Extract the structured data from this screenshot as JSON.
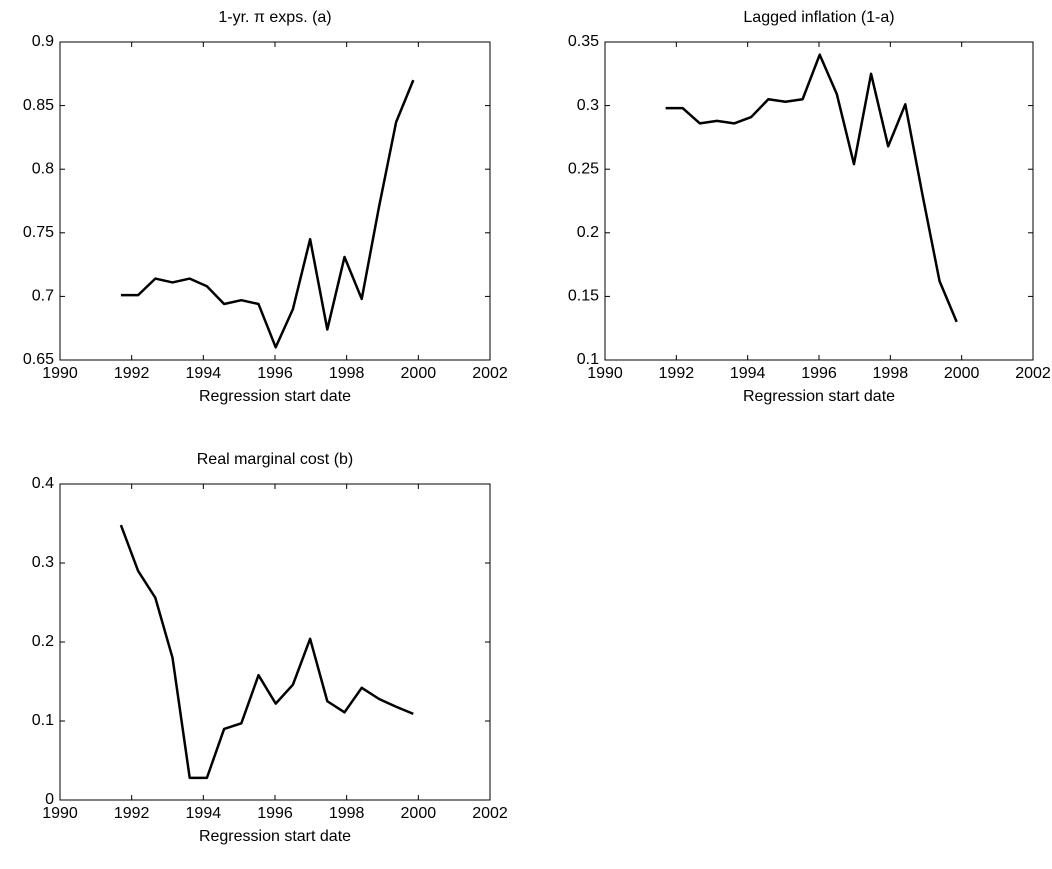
{
  "chart_data": [
    {
      "type": "line",
      "title": "1-yr. π exps. (a)",
      "xlabel": "Regression start date",
      "color": "#000000",
      "x": [
        1991.7,
        1992.18,
        1992.66,
        1993.14,
        1993.62,
        1994.1,
        1994.58,
        1995.06,
        1995.54,
        1996.02,
        1996.5,
        1996.98,
        1997.46,
        1997.94,
        1998.42,
        1998.9,
        1999.38,
        1999.86
      ],
      "values": [
        0.701,
        0.701,
        0.714,
        0.711,
        0.714,
        0.708,
        0.694,
        0.697,
        0.694,
        0.66,
        0.69,
        0.745,
        0.674,
        0.731,
        0.698,
        0.77,
        0.837,
        0.87
      ],
      "xlim": [
        1990,
        2002
      ],
      "ylim": [
        0.65,
        0.9
      ],
      "xticks": [
        1990,
        1992,
        1994,
        1996,
        1998,
        2000,
        2002
      ],
      "yticks": [
        0.65,
        0.7,
        0.75,
        0.8,
        0.85,
        0.9
      ]
    },
    {
      "type": "line",
      "title": "Lagged inflation (1-a)",
      "xlabel": "Regression start date",
      "color": "#000000",
      "x": [
        1991.7,
        1992.18,
        1992.66,
        1993.14,
        1993.62,
        1994.1,
        1994.58,
        1995.06,
        1995.54,
        1996.02,
        1996.5,
        1996.98,
        1997.46,
        1997.94,
        1998.42,
        1998.9,
        1999.38,
        1999.86
      ],
      "values": [
        0.298,
        0.298,
        0.286,
        0.288,
        0.286,
        0.291,
        0.305,
        0.303,
        0.305,
        0.34,
        0.309,
        0.254,
        0.325,
        0.268,
        0.301,
        0.23,
        0.162,
        0.13
      ],
      "xlim": [
        1990,
        2002
      ],
      "ylim": [
        0.1,
        0.35
      ],
      "xticks": [
        1990,
        1992,
        1994,
        1996,
        1998,
        2000,
        2002
      ],
      "yticks": [
        0.1,
        0.15,
        0.2,
        0.25,
        0.3,
        0.35
      ]
    },
    {
      "type": "line",
      "title": "Real marginal cost (b)",
      "xlabel": "Regression start date",
      "color": "#000000",
      "x": [
        1991.7,
        1992.18,
        1992.66,
        1993.14,
        1993.62,
        1994.1,
        1994.58,
        1995.06,
        1995.54,
        1996.02,
        1996.5,
        1996.98,
        1997.46,
        1997.94,
        1998.42,
        1998.9,
        1999.38,
        1999.86
      ],
      "values": [
        0.348,
        0.29,
        0.256,
        0.18,
        0.028,
        0.028,
        0.09,
        0.097,
        0.158,
        0.122,
        0.146,
        0.204,
        0.125,
        0.111,
        0.142,
        0.128,
        0.118,
        0.109
      ],
      "xlim": [
        1990,
        2002
      ],
      "ylim": [
        0,
        0.4
      ],
      "xticks": [
        1990,
        1992,
        1994,
        1996,
        1998,
        2000,
        2002
      ],
      "yticks": [
        0,
        0.1,
        0.2,
        0.3,
        0.4
      ]
    }
  ]
}
